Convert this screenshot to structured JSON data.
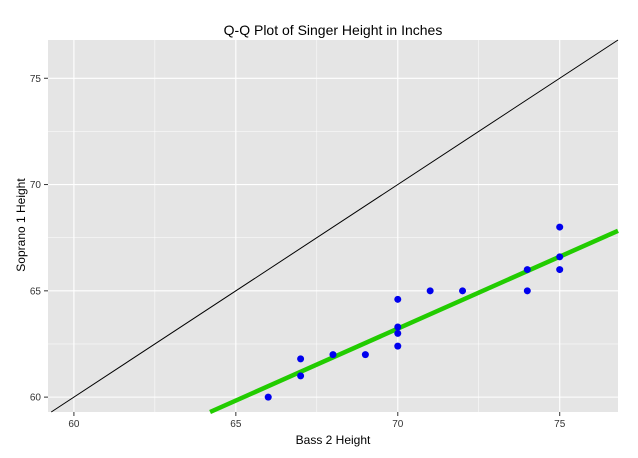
{
  "chart_data": {
    "type": "scatter",
    "title": "Q-Q Plot of Singer Height in Inches",
    "xlabel": "Bass 2 Height",
    "ylabel": "Soprano 1 Height",
    "xlim": [
      59.2,
      76.8
    ],
    "ylim": [
      59.3,
      76.8
    ],
    "x_ticks": [
      60,
      65,
      70,
      75
    ],
    "y_ticks": [
      60,
      65,
      70,
      75
    ],
    "grid": true,
    "points": [
      {
        "x": 66,
        "y": 60
      },
      {
        "x": 67,
        "y": 61
      },
      {
        "x": 67,
        "y": 61.8
      },
      {
        "x": 68,
        "y": 62
      },
      {
        "x": 69,
        "y": 62
      },
      {
        "x": 70,
        "y": 62.4
      },
      {
        "x": 70,
        "y": 63
      },
      {
        "x": 70,
        "y": 63.3
      },
      {
        "x": 70,
        "y": 64.6
      },
      {
        "x": 71,
        "y": 65
      },
      {
        "x": 72,
        "y": 65
      },
      {
        "x": 74,
        "y": 65
      },
      {
        "x": 74,
        "y": 66
      },
      {
        "x": 75,
        "y": 66
      },
      {
        "x": 75,
        "y": 66.6
      },
      {
        "x": 75,
        "y": 68
      }
    ],
    "reference_line": {
      "slope": 1,
      "intercept": 0
    },
    "fit_line": {
      "slope": 0.6769,
      "intercept": 15.84
    },
    "colors": {
      "points": "#0000ee",
      "fit_line": "#22cc00",
      "reference_line": "#000000",
      "panel": "#e5e5e5",
      "grid": "#ffffff"
    }
  }
}
